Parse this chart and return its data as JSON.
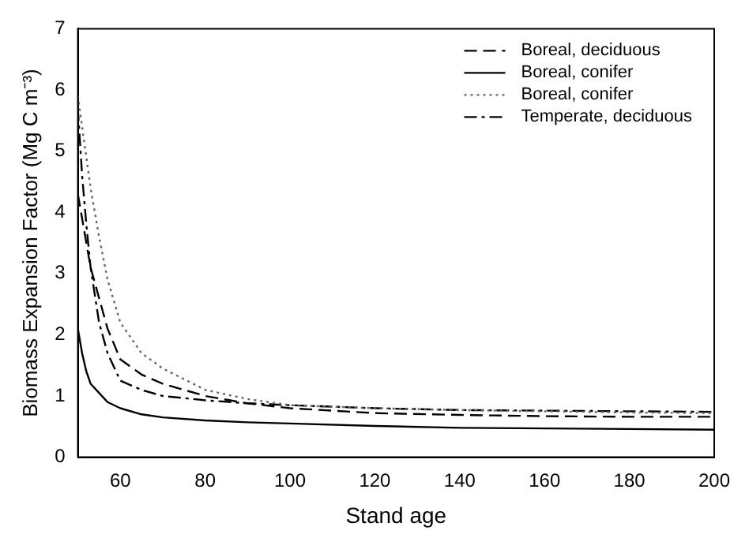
{
  "chart_data": {
    "type": "line",
    "xlabel": "Stand age",
    "ylabel": "Biomass Expansion Factor (Mg C m⁻³)",
    "x": [
      50,
      51,
      52,
      53,
      55,
      57,
      60,
      65,
      70,
      80,
      90,
      100,
      120,
      140,
      160,
      180,
      200
    ],
    "series": [
      {
        "name": "Boreal, deciduous",
        "color": "#000000",
        "line_style": "dashed",
        "values": [
          4.3,
          3.9,
          3.5,
          3.1,
          2.6,
          2.1,
          1.6,
          1.35,
          1.2,
          1.0,
          0.88,
          0.8,
          0.72,
          0.69,
          0.67,
          0.66,
          0.66
        ]
      },
      {
        "name": "Boreal, conifer",
        "color": "#000000",
        "line_style": "solid",
        "values": [
          2.1,
          1.7,
          1.4,
          1.2,
          1.05,
          0.9,
          0.8,
          0.7,
          0.65,
          0.6,
          0.57,
          0.55,
          0.51,
          0.48,
          0.47,
          0.46,
          0.45
        ]
      },
      {
        "name": "Boreal, conifer",
        "color": "#666666",
        "line_style": "dotted",
        "values": [
          5.9,
          5.4,
          4.9,
          4.4,
          3.6,
          2.9,
          2.2,
          1.7,
          1.45,
          1.1,
          0.95,
          0.85,
          0.8,
          0.77,
          0.75,
          0.73,
          0.72
        ]
      },
      {
        "name": "Temperate, deciduous",
        "color": "#000000",
        "line_style": "dashdot",
        "values": [
          5.7,
          4.6,
          3.8,
          3.1,
          2.2,
          1.7,
          1.25,
          1.1,
          1.0,
          0.93,
          0.88,
          0.85,
          0.8,
          0.77,
          0.76,
          0.75,
          0.74
        ]
      }
    ],
    "xlim": [
      50,
      200
    ],
    "xticks": [
      60,
      80,
      100,
      120,
      140,
      160,
      180,
      200
    ],
    "ylim": [
      0,
      7
    ],
    "yticks": [
      0,
      1,
      2,
      3,
      4,
      5,
      6,
      7
    ],
    "grid": false,
    "legend": "top right",
    "marker": "none"
  }
}
